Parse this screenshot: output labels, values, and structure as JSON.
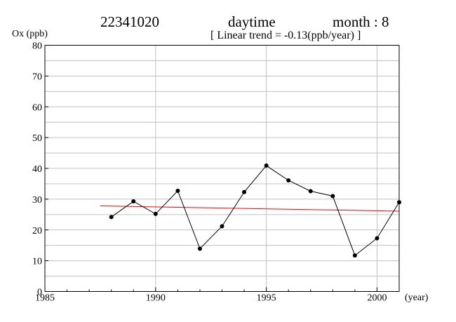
{
  "header": {
    "station": "22341020",
    "period": "daytime",
    "month_label": "month : 8",
    "trend_label": "[ Linear trend = -0.13(ppb/year) ]"
  },
  "chart_data": {
    "type": "line",
    "ylabel": "Ox (ppb)",
    "xlabel": "(year)",
    "xlim": [
      1985,
      2001
    ],
    "ylim": [
      0,
      80
    ],
    "x_ticks": [
      1985,
      1990,
      1995,
      2000
    ],
    "y_ticks": [
      0,
      10,
      20,
      30,
      40,
      50,
      60,
      70,
      80
    ],
    "grid": true,
    "series": [
      {
        "color": "#000000",
        "x": [
          1988,
          1989,
          1990,
          1991,
          1992,
          1993,
          1994,
          1995,
          1996,
          1997,
          1998,
          1999,
          2000,
          2001
        ],
        "y": [
          24.2,
          29.3,
          25.2,
          32.7,
          13.9,
          21.2,
          32.3,
          40.9,
          36.1,
          32.6,
          31.0,
          11.7,
          17.3,
          29.0
        ]
      }
    ],
    "trend": {
      "color": "#ff0000",
      "x": [
        1987.5,
        2001
      ],
      "y": [
        27.8,
        26.1
      ]
    }
  }
}
